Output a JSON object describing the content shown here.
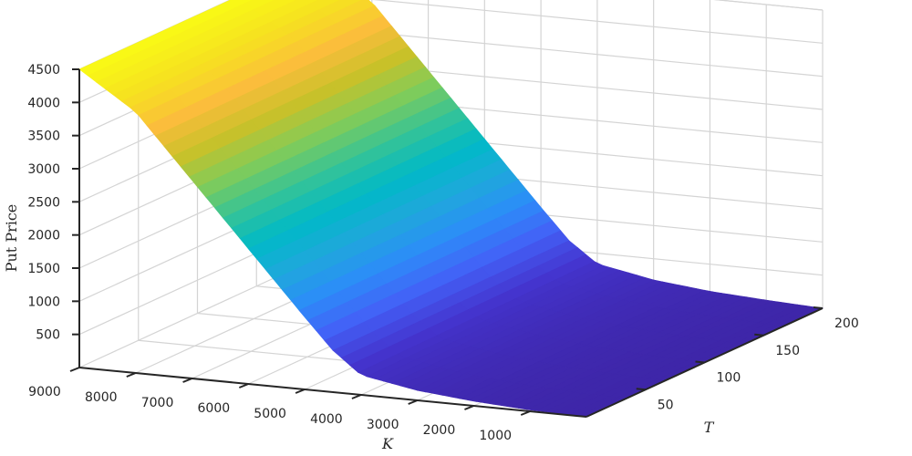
{
  "chart_data": {
    "type": "surface",
    "title": "",
    "xlabel": "K",
    "ylabel": "T",
    "zlabel": "Put Price",
    "x_ticks": [
      1000,
      2000,
      3000,
      4000,
      5000,
      6000,
      7000,
      8000,
      9000
    ],
    "y_ticks": [
      50,
      100,
      150,
      200
    ],
    "z_ticks": [
      500,
      1000,
      1500,
      2000,
      2500,
      3000,
      3500,
      4000,
      4500
    ],
    "xlim": [
      0,
      9000
    ],
    "ylim": [
      0,
      200
    ],
    "zlim": [
      0,
      4500
    ],
    "grid": true,
    "colormap": [
      "#3e26a8",
      "#4434ce",
      "#4361f7",
      "#2c8df8",
      "#1fa8db",
      "#00b9c7",
      "#35c397",
      "#81cc59",
      "#c9c129",
      "#fbbd3c",
      "#f6e120",
      "#f9fb15"
    ],
    "spot_price": 4000,
    "series": [
      {
        "x": 9000,
        "values": [
          4500,
          4500,
          4500
        ]
      },
      {
        "x": 8000,
        "values": [
          3940,
          3950,
          3960
        ]
      },
      {
        "x": 7000,
        "values": [
          2990,
          3000,
          3010
        ]
      },
      {
        "x": 6000,
        "values": [
          2040,
          2050,
          2060
        ]
      },
      {
        "x": 5000,
        "values": [
          1090,
          1100,
          1110
        ]
      },
      {
        "x": 4500,
        "values": [
          630,
          640,
          650
        ]
      },
      {
        "x": 4000,
        "values": [
          300,
          320,
          340
        ]
      },
      {
        "x": 3000,
        "values": [
          150,
          170,
          180
        ]
      },
      {
        "x": 2000,
        "values": [
          70,
          80,
          90
        ]
      },
      {
        "x": 1000,
        "values": [
          20,
          30,
          40
        ]
      },
      {
        "x": 0,
        "values": [
          0,
          0,
          0
        ]
      }
    ],
    "t_values": [
      0,
      100,
      200
    ]
  }
}
